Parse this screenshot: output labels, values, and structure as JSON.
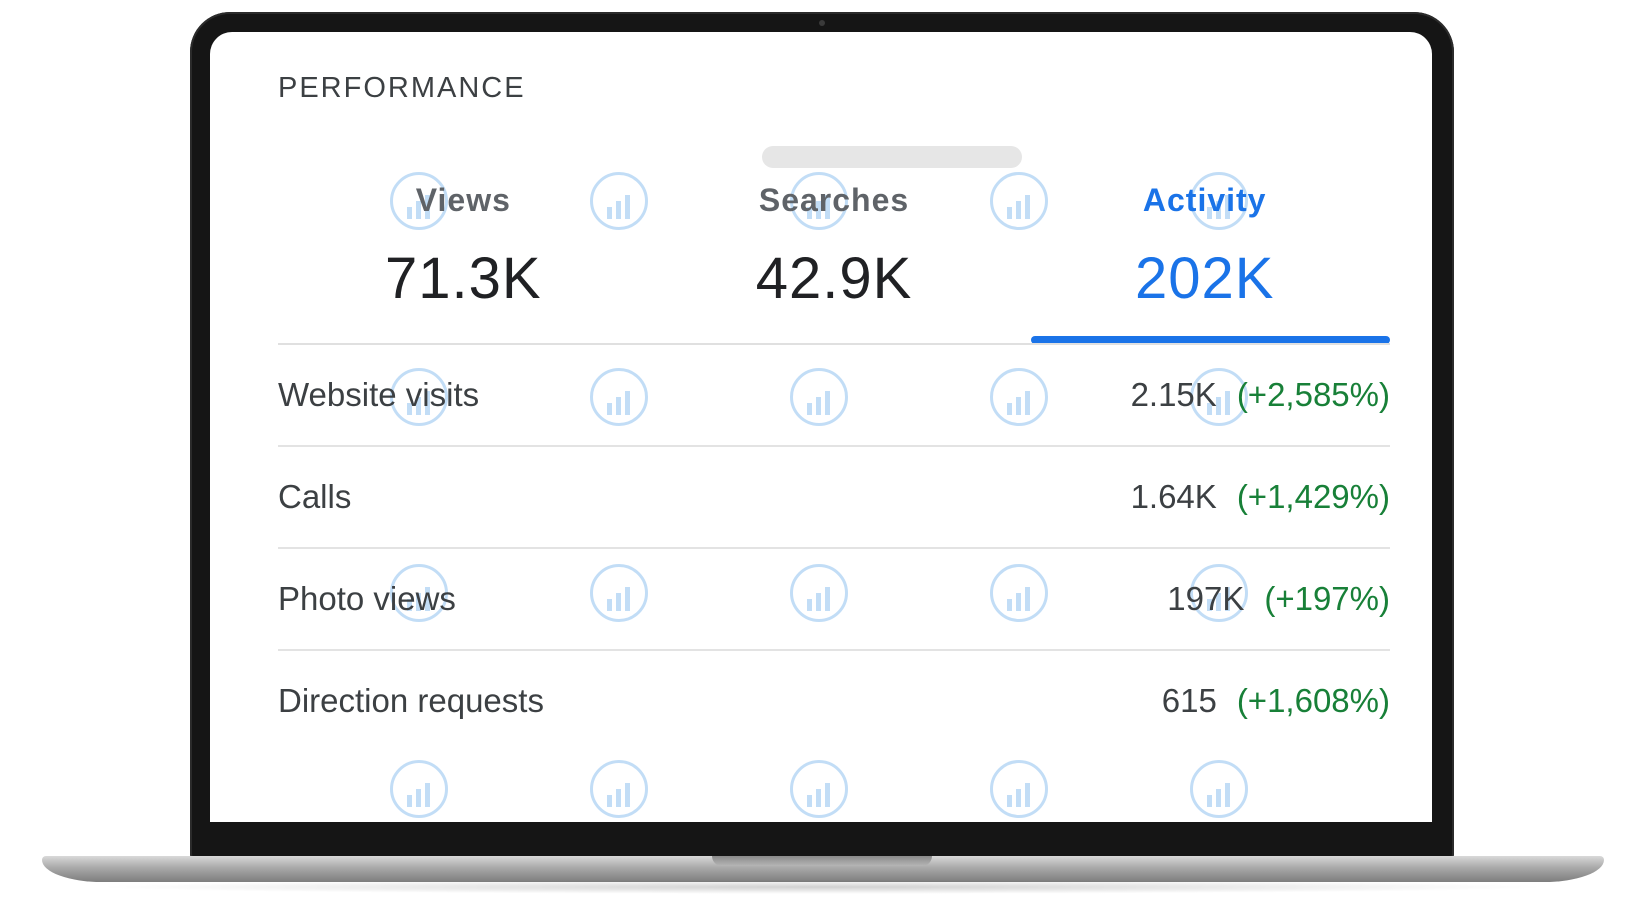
{
  "performance": {
    "title": "PERFORMANCE"
  },
  "tabs": [
    {
      "label": "Views",
      "value": "71.3K",
      "active": false
    },
    {
      "label": "Searches",
      "value": "42.9K",
      "active": false
    },
    {
      "label": "Activity",
      "value": "202K",
      "active": true
    }
  ],
  "rows": [
    {
      "label": "Website visits",
      "value": "2.15K",
      "change": "(+2,585%)"
    },
    {
      "label": "Calls",
      "value": "1.64K",
      "change": "(+1,429%)"
    },
    {
      "label": "Photo views",
      "value": "197K",
      "change": "(+197%)"
    },
    {
      "label": "Direction requests",
      "value": "615",
      "change": "(+1,608%)"
    }
  ],
  "colors": {
    "accent": "#1a73e8",
    "positive_change": "#188038",
    "text": "#3c4043"
  },
  "icons": {
    "watermark": "chart-watermark-icon"
  }
}
